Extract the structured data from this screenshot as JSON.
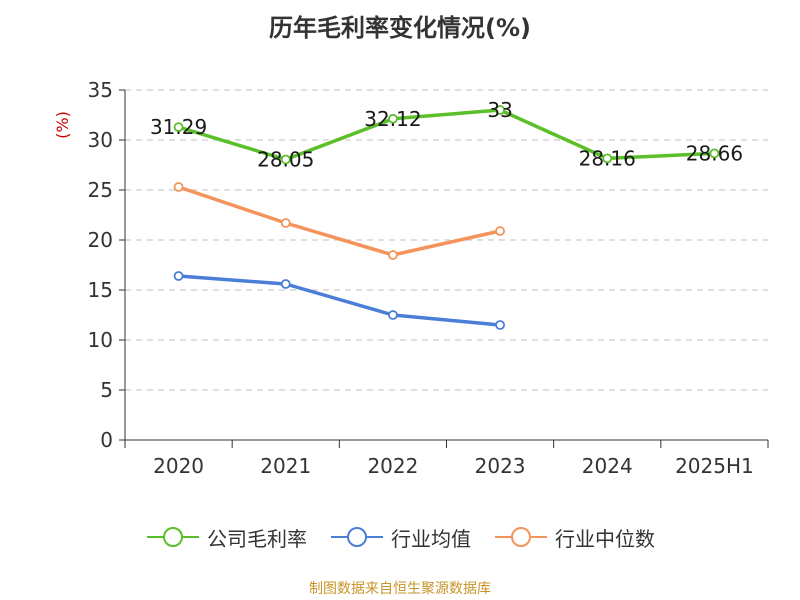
{
  "chart_data": {
    "type": "line",
    "title": "历年毛利率变化情况(%)",
    "ylabel": "(%)",
    "xlabel": "",
    "categories": [
      "2020",
      "2021",
      "2022",
      "2023",
      "2024",
      "2025H1"
    ],
    "ylim": [
      0,
      35
    ],
    "yticks": [
      0,
      5,
      10,
      15,
      20,
      25,
      30,
      35
    ],
    "grid": true,
    "legend_position": "bottom",
    "series": [
      {
        "name": "公司毛利率",
        "color": "#5bbf2a",
        "values": [
          31.29,
          28.05,
          32.12,
          33,
          28.16,
          28.66
        ],
        "labels": [
          "31.29",
          "28.05",
          "32.12",
          "33",
          "28.16",
          "28.66"
        ]
      },
      {
        "name": "行业均值",
        "color": "#4a7fd8",
        "values": [
          16.4,
          15.6,
          12.5,
          11.5,
          null,
          null
        ]
      },
      {
        "name": "行业中位数",
        "color": "#f4935b",
        "values": [
          25.3,
          21.7,
          18.5,
          20.9,
          null,
          null
        ]
      }
    ]
  },
  "source_note": "制图数据来自恒生聚源数据库"
}
